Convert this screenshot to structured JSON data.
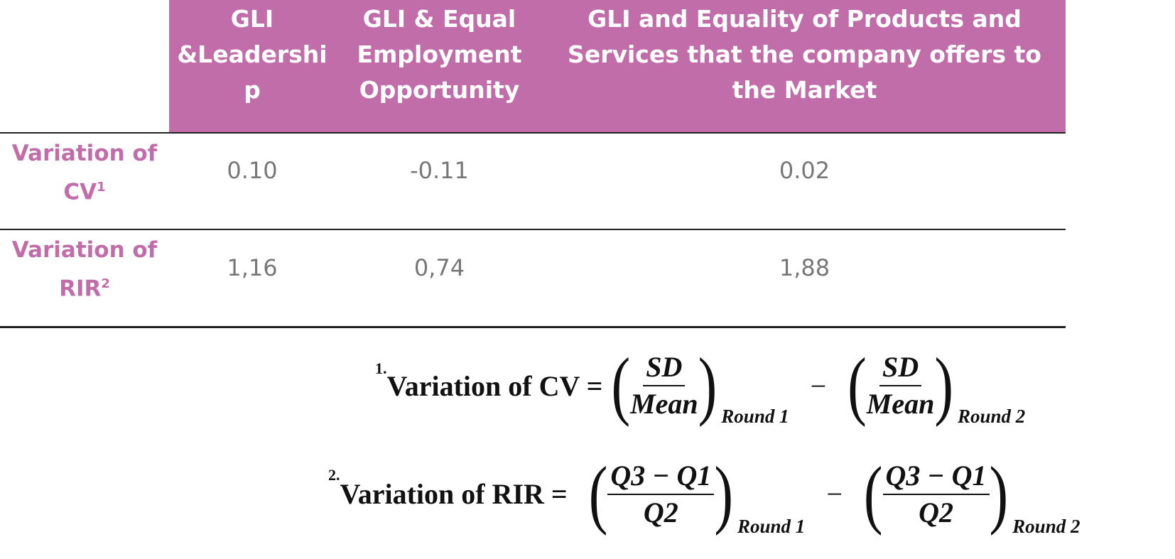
{
  "table": {
    "header": [
      "GLI &Leadership",
      "GLI & Equal Employment Opportunity",
      "GLI and Equality of Products and Services that the company offers to the Market"
    ],
    "rows": [
      {
        "label": "Variation of CV",
        "note": "1",
        "cells": [
          "0.10",
          "-0.11",
          "0.02"
        ]
      },
      {
        "label": "Variation of RIR",
        "note": "2",
        "cells": [
          "1,16",
          "0,74",
          "1,88"
        ]
      }
    ]
  },
  "formulas": [
    {
      "number": "1.",
      "lhs": "Variation of CV =",
      "minus": "−",
      "terms": [
        {
          "numerator": "SD",
          "denominator": "Mean",
          "subscript": "Round 1"
        },
        {
          "numerator": "SD",
          "denominator": "Mean",
          "subscript": "Round 2"
        }
      ]
    },
    {
      "number": "2.",
      "lhs": "Variation of RIR =",
      "minus": "−",
      "terms": [
        {
          "numerator": "Q3 − Q1",
          "denominator": "Q2",
          "subscript": "Round 1"
        },
        {
          "numerator": "Q3 − Q1",
          "denominator": "Q2",
          "subscript": "Round 2"
        }
      ]
    }
  ]
}
